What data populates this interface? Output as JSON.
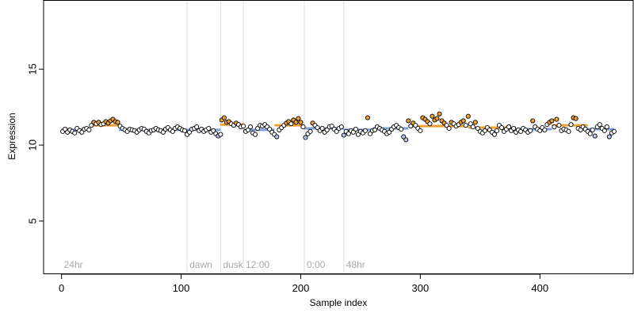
{
  "chart_data": {
    "type": "scatter",
    "title": "",
    "xlabel": "Sample index",
    "ylabel": "Expression",
    "xlim": [
      -15,
      478
    ],
    "ylim": [
      1.5,
      19.5
    ],
    "x_ticks": [
      0,
      100,
      200,
      300,
      400
    ],
    "y_ticks": [
      5,
      10,
      15
    ],
    "grid": false,
    "colors": {
      "point_edge": "#000000",
      "point_fill_above": "#f0a030",
      "point_fill_below": "#b8c8e8",
      "segment_above": "#f0a030",
      "segment_below": "#7f9fd8",
      "condition_line": "#dddddd",
      "condition_text": "#a8a8a8"
    },
    "conditions": [
      {
        "label": "24hr",
        "x": 0
      },
      {
        "label": "dawn",
        "x": 105
      },
      {
        "label": "dusk",
        "x": 133
      },
      {
        "label": "12:00",
        "x": 152
      },
      {
        "label": "0:00",
        "x": 203
      },
      {
        "label": "48hr",
        "x": 236
      }
    ],
    "baseline_segments": [
      {
        "x": [
          0,
          24
        ],
        "y": 11.0
      },
      {
        "x": [
          24,
          48
        ],
        "y": 11.3
      },
      {
        "x": [
          48,
          105
        ],
        "y": 11.0
      },
      {
        "x": [
          105,
          133
        ],
        "y": 11.0
      },
      {
        "x": [
          133,
          152
        ],
        "y": 11.35
      },
      {
        "x": [
          152,
          178
        ],
        "y": 11.0
      },
      {
        "x": [
          178,
          203
        ],
        "y": 11.3
      },
      {
        "x": [
          203,
          236
        ],
        "y": 11.1
      },
      {
        "x": [
          236,
          260
        ],
        "y": 11.0
      },
      {
        "x": [
          260,
          290
        ],
        "y": 11.1
      },
      {
        "x": [
          290,
          340
        ],
        "y": 11.25
      },
      {
        "x": [
          340,
          380
        ],
        "y": 11.15
      },
      {
        "x": [
          380,
          410
        ],
        "y": 11.05
      },
      {
        "x": [
          410,
          440
        ],
        "y": 11.3
      },
      {
        "x": [
          440,
          462
        ],
        "y": 11.05
      }
    ],
    "series": [
      {
        "x": [
          1,
          3,
          5,
          7,
          9,
          11,
          13,
          15,
          17,
          19,
          21,
          23,
          25,
          27,
          29,
          31,
          33,
          35,
          37,
          39,
          41,
          43,
          45,
          47,
          49,
          51,
          53,
          55,
          57,
          59,
          61,
          63,
          65,
          67,
          69,
          71,
          73,
          75,
          77,
          79,
          81,
          83,
          85,
          87,
          89,
          91,
          93,
          95,
          97,
          99,
          101,
          103,
          105,
          107,
          109,
          111,
          113,
          115,
          117,
          119,
          121,
          123,
          125,
          127,
          129,
          131,
          133,
          134,
          136,
          138,
          140,
          142,
          144,
          146,
          148,
          150,
          152,
          154,
          156,
          158,
          160,
          162,
          164,
          166,
          168,
          170,
          172,
          174,
          176,
          178,
          180,
          182,
          184,
          186,
          188,
          190,
          192,
          194,
          196,
          198,
          200,
          202,
          204,
          206,
          208,
          210,
          212,
          214,
          216,
          218,
          220,
          222,
          224,
          226,
          228,
          230,
          232,
          234,
          236,
          238,
          240,
          242,
          244,
          246,
          248,
          250,
          252,
          254,
          256,
          258,
          260,
          262,
          264,
          266,
          268,
          270,
          272,
          274,
          276,
          278,
          280,
          282,
          284,
          286,
          288,
          290,
          292,
          294,
          296,
          298,
          300,
          302,
          304,
          306,
          308,
          310,
          312,
          314,
          316,
          318,
          320,
          322,
          324,
          326,
          328,
          330,
          332,
          334,
          336,
          338,
          340,
          342,
          344,
          346,
          348,
          350,
          352,
          354,
          356,
          358,
          360,
          362,
          364,
          366,
          368,
          370,
          372,
          374,
          376,
          378,
          380,
          382,
          384,
          386,
          388,
          390,
          392,
          394,
          396,
          398,
          400,
          402,
          404,
          406,
          408,
          410,
          412,
          414,
          416,
          418,
          420,
          422,
          424,
          426,
          428,
          430,
          432,
          434,
          436,
          438,
          440,
          442,
          444,
          446,
          448,
          450,
          452,
          454,
          456,
          458,
          460,
          462
        ],
        "y": [
          10.9,
          11.05,
          10.85,
          11.0,
          10.9,
          10.8,
          11.1,
          10.95,
          10.85,
          11.05,
          11.1,
          11.0,
          11.3,
          11.5,
          11.4,
          11.5,
          11.35,
          11.4,
          11.55,
          11.45,
          11.6,
          11.7,
          11.55,
          11.5,
          11.25,
          11.1,
          11.0,
          10.9,
          11.05,
          11.0,
          10.95,
          10.85,
          11.0,
          11.1,
          11.05,
          10.9,
          10.8,
          10.95,
          11.0,
          11.1,
          11.0,
          10.95,
          10.85,
          11.05,
          11.15,
          11.0,
          10.9,
          11.1,
          11.2,
          11.1,
          11.0,
          10.95,
          10.7,
          10.85,
          11.05,
          11.1,
          11.2,
          10.95,
          11.05,
          10.9,
          11.0,
          11.1,
          10.85,
          10.95,
          10.75,
          10.6,
          10.7,
          11.65,
          11.8,
          11.5,
          11.55,
          11.4,
          11.3,
          11.45,
          11.35,
          11.2,
          11.25,
          10.9,
          11.0,
          11.2,
          10.8,
          10.7,
          11.1,
          11.3,
          11.25,
          11.35,
          11.2,
          11.05,
          10.85,
          10.7,
          10.55,
          11.0,
          11.15,
          11.3,
          11.45,
          11.55,
          11.4,
          11.65,
          11.5,
          11.75,
          11.5,
          11.2,
          10.5,
          10.75,
          10.9,
          11.45,
          11.3,
          11.15,
          10.95,
          11.1,
          10.85,
          11.0,
          11.2,
          11.25,
          11.05,
          10.9,
          11.1,
          11.2,
          10.65,
          10.9,
          10.75,
          10.95,
          10.85,
          11.05,
          10.7,
          10.9,
          10.8,
          10.95,
          11.8,
          10.75,
          10.95,
          11.0,
          11.2,
          11.1,
          11.0,
          10.9,
          10.75,
          10.85,
          11.05,
          11.2,
          11.3,
          11.15,
          11.05,
          10.55,
          10.35,
          11.6,
          11.25,
          11.45,
          11.3,
          11.1,
          10.95,
          11.8,
          11.7,
          11.55,
          11.4,
          11.9,
          11.65,
          11.75,
          12.05,
          11.6,
          11.45,
          11.3,
          11.1,
          11.5,
          11.4,
          11.25,
          11.35,
          11.5,
          11.6,
          11.3,
          11.9,
          11.4,
          11.2,
          11.5,
          11.1,
          10.9,
          10.8,
          10.95,
          11.15,
          11.0,
          10.85,
          10.7,
          10.95,
          11.3,
          11.15,
          10.9,
          11.05,
          11.2,
          10.95,
          11.1,
          10.85,
          11.0,
          10.9,
          11.1,
          11.0,
          10.85,
          10.95,
          11.6,
          11.2,
          11.05,
          10.95,
          11.15,
          11.0,
          11.35,
          11.5,
          11.6,
          11.2,
          11.7,
          11.3,
          10.95,
          11.05,
          11.0,
          10.9,
          11.35,
          11.8,
          11.75,
          11.1,
          11.0,
          11.2,
          11.05,
          10.9,
          10.75,
          11.0,
          10.6,
          11.2,
          11.35,
          11.1,
          10.95,
          11.2,
          10.55,
          10.8,
          10.9
        ]
      }
    ]
  }
}
